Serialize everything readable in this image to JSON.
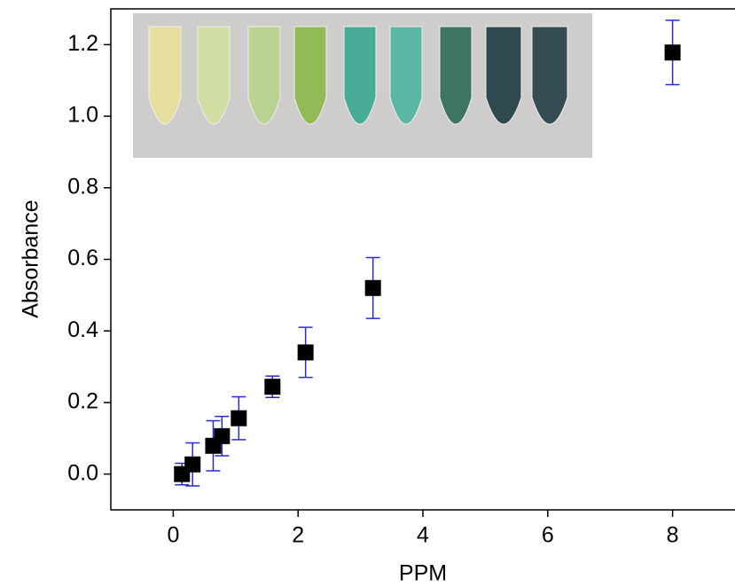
{
  "chart_data": {
    "type": "scatter",
    "xlabel": "PPM",
    "ylabel": "Absorbance",
    "x": [
      0.14,
      0.31,
      0.64,
      0.78,
      1.05,
      1.59,
      2.12,
      3.2,
      8.0
    ],
    "values": [
      0.0,
      0.027,
      0.079,
      0.106,
      0.156,
      0.244,
      0.34,
      0.52,
      1.178
    ],
    "errors": [
      0.03,
      0.06,
      0.07,
      0.055,
      0.06,
      0.03,
      0.07,
      0.085,
      0.09
    ],
    "color": "#000000",
    "error_color": "#2a2ad0",
    "xlim": [
      -1,
      9
    ],
    "xticks": [
      0,
      2,
      4,
      6,
      8
    ],
    "ylim": [
      -0.1,
      1.3
    ],
    "yticks": [
      {
        "value": 0,
        "label": "0.0"
      },
      {
        "value": 0.2,
        "label": "0.2"
      },
      {
        "value": 0.4,
        "label": "0.4"
      },
      {
        "value": 0.6,
        "label": "0.6"
      },
      {
        "value": 0.8,
        "label": "0.8"
      },
      {
        "value": 1.0,
        "label": "1.0"
      },
      {
        "value": 1.2,
        "label": "1.2"
      }
    ]
  }
}
